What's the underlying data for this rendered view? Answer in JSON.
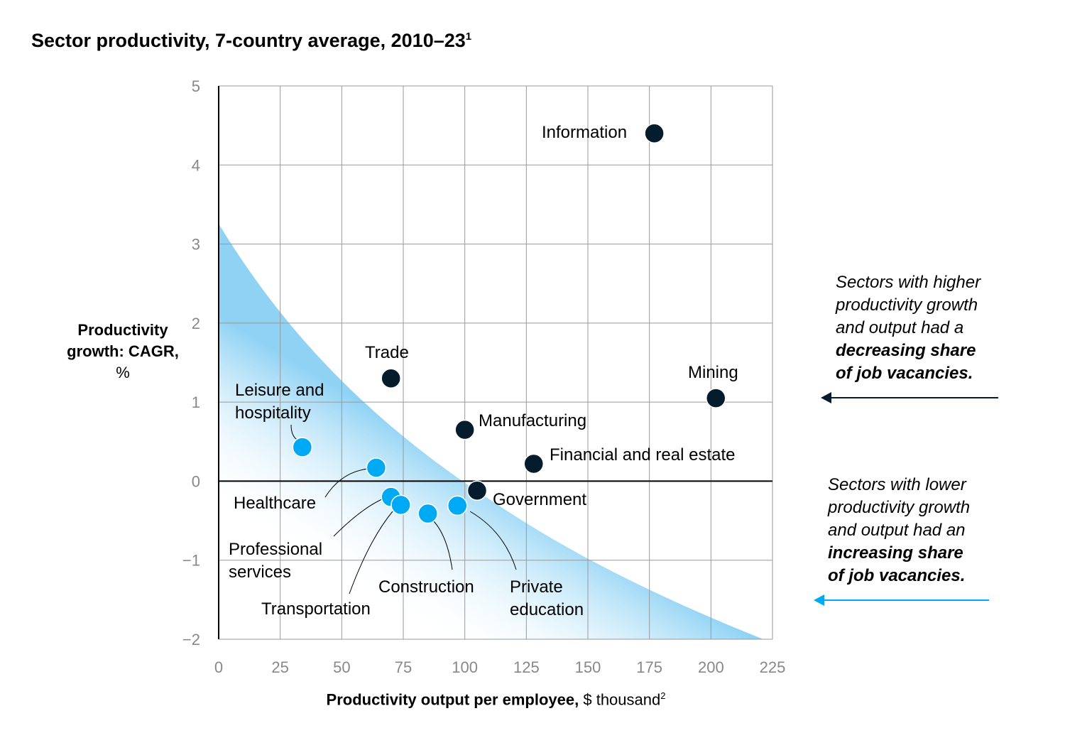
{
  "title": "Sector productivity, 7-country average, 2010–23",
  "title_footnote": "1",
  "chart_data": {
    "type": "scatter",
    "title": "Sector productivity, 7-country average, 2010–23",
    "xlabel_bold": "Productivity output per employee,",
    "xlabel_unit": "$ thousand",
    "xlabel_footnote": "2",
    "ylabel_bold": "Productivity growth: CAGR,",
    "ylabel_unit": "%",
    "xlim": [
      0,
      225
    ],
    "ylim": [
      -2,
      5
    ],
    "xticks": [
      "0",
      "25",
      "50",
      "75",
      "100",
      "125",
      "150",
      "175",
      "200",
      "225"
    ],
    "yticks": [
      "5",
      "4",
      "3",
      "2",
      "1",
      "0",
      "−1",
      "−2"
    ],
    "grid": true,
    "colors": {
      "higher": "#051c2c",
      "lower": "#00a9f4"
    },
    "points": [
      {
        "label": "Information",
        "x": 177,
        "y": 4.4,
        "group": "higher"
      },
      {
        "label": "Trade",
        "x": 70,
        "y": 1.3,
        "group": "higher"
      },
      {
        "label": "Mining",
        "x": 202,
        "y": 1.05,
        "group": "higher"
      },
      {
        "label": "Manufacturing",
        "x": 100,
        "y": 0.65,
        "group": "higher"
      },
      {
        "label": "Financial and real estate",
        "x": 128,
        "y": 0.22,
        "group": "higher"
      },
      {
        "label": "Government",
        "x": 105,
        "y": -0.12,
        "group": "higher"
      },
      {
        "label": "Leisure and hospitality",
        "x": 34,
        "y": 0.43,
        "group": "lower"
      },
      {
        "label": "Healthcare",
        "x": 64,
        "y": 0.17,
        "group": "lower"
      },
      {
        "label": "Professional services",
        "x": 70,
        "y": -0.2,
        "group": "lower"
      },
      {
        "label": "Transportation",
        "x": 74,
        "y": -0.3,
        "group": "lower"
      },
      {
        "label": "Construction",
        "x": 85,
        "y": -0.41,
        "group": "lower"
      },
      {
        "label": "Private education",
        "x": 97,
        "y": -0.31,
        "group": "lower"
      }
    ]
  },
  "annotations": {
    "higher": {
      "text": [
        "Sectors with higher",
        "productivity growth",
        "and output had a"
      ],
      "bold": [
        "decreasing share",
        "of job vacancies."
      ]
    },
    "lower": {
      "text": [
        "Sectors with lower",
        "productivity growth",
        "and output had an"
      ],
      "bold": [
        "increasing share",
        "of job vacancies."
      ]
    }
  }
}
